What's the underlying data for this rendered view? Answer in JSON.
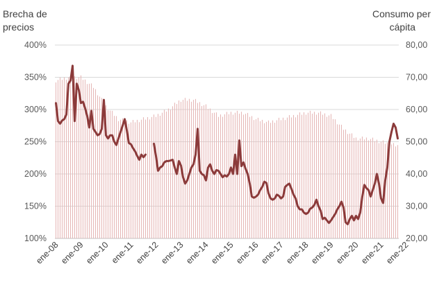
{
  "chart_data": {
    "type": "bar+line",
    "left_axis": {
      "title_lines": [
        "Brecha de",
        "precios"
      ],
      "range": [
        100,
        400
      ],
      "ticks": [
        "400%",
        "350%",
        "300%",
        "250%",
        "200%",
        "150%",
        "100%"
      ]
    },
    "right_axis": {
      "title_lines": [
        "Consumo per",
        "cápita"
      ],
      "range": [
        20,
        80
      ],
      "ticks": [
        "80,00",
        "70,00",
        "60,00",
        "50,00",
        "40,00",
        "30,00",
        "20,00"
      ]
    },
    "x_labels": [
      "ene-08",
      "ene-09",
      "ene-10",
      "ene-11",
      "ene-12",
      "ene-13",
      "ene-14",
      "ene-15",
      "ene-16",
      "ene-17",
      "ene-18",
      "ene-19",
      "ene-20",
      "ene-21",
      "ene-22"
    ],
    "grid": true,
    "series": [
      {
        "type": "bar",
        "axis": "right",
        "color": "#e6b8b7",
        "anchors": [
          [
            0,
            69
          ],
          [
            6,
            70
          ],
          [
            12,
            70
          ],
          [
            18,
            67
          ],
          [
            24,
            61
          ],
          [
            30,
            57
          ],
          [
            36,
            56
          ],
          [
            42,
            57
          ],
          [
            48,
            58
          ],
          [
            54,
            60
          ],
          [
            60,
            63
          ],
          [
            66,
            63
          ],
          [
            72,
            61
          ],
          [
            78,
            58
          ],
          [
            84,
            59
          ],
          [
            90,
            59
          ],
          [
            96,
            57
          ],
          [
            102,
            56
          ],
          [
            108,
            57
          ],
          [
            114,
            58
          ],
          [
            120,
            59
          ],
          [
            126,
            59
          ],
          [
            132,
            58
          ],
          [
            138,
            54
          ],
          [
            144,
            51
          ],
          [
            150,
            51
          ],
          [
            156,
            50
          ],
          [
            162,
            49
          ],
          [
            168,
            48
          ],
          [
            174,
            48
          ]
        ]
      },
      {
        "type": "line",
        "axis": "left",
        "color": "#8b3a3a",
        "segments": [
          [
            [
              0,
              310
            ],
            [
              1,
              282
            ],
            [
              2,
              278
            ],
            [
              3,
              283
            ],
            [
              4,
              285
            ],
            [
              5,
              292
            ],
            [
              6,
              340
            ],
            [
              7,
              345
            ],
            [
              8,
              368
            ],
            [
              9,
              282
            ],
            [
              10,
              340
            ],
            [
              11,
              330
            ],
            [
              12,
              310
            ],
            [
              13,
              312
            ],
            [
              14,
              302
            ],
            [
              15,
              290
            ],
            [
              16,
              272
            ],
            [
              17,
              298
            ],
            [
              18,
              270
            ],
            [
              19,
              265
            ],
            [
              20,
              260
            ],
            [
              21,
              262
            ],
            [
              22,
              270
            ],
            [
              23,
              315
            ],
            [
              24,
              260
            ],
            [
              25,
              255
            ],
            [
              26,
              260
            ],
            [
              27,
              260
            ],
            [
              28,
              250
            ],
            [
              29,
              245
            ],
            [
              30,
              255
            ],
            [
              31,
              265
            ],
            [
              32,
              275
            ],
            [
              33,
              285
            ],
            [
              34,
              268
            ],
            [
              35,
              248
            ],
            [
              36,
              246
            ],
            [
              37,
              240
            ],
            [
              38,
              235
            ],
            [
              39,
              228
            ],
            [
              40,
              222
            ],
            [
              41,
              230
            ],
            [
              42,
              226
            ],
            [
              43,
              230
            ]
          ],
          [
            [
              47,
              247
            ],
            [
              48,
              228
            ],
            [
              49,
              205
            ],
            [
              50,
              210
            ],
            [
              51,
              212
            ],
            [
              52,
              218
            ],
            [
              53,
              220
            ],
            [
              54,
              220
            ],
            [
              55,
              221
            ],
            [
              56,
              222
            ],
            [
              57,
              210
            ],
            [
              58,
              200
            ],
            [
              59,
              220
            ],
            [
              60,
              213
            ],
            [
              61,
              195
            ],
            [
              62,
              185
            ],
            [
              63,
              190
            ],
            [
              64,
              200
            ],
            [
              65,
              210
            ],
            [
              66,
              215
            ],
            [
              67,
              230
            ],
            [
              68,
              270
            ],
            [
              69,
              205
            ],
            [
              70,
              200
            ],
            [
              71,
              198
            ],
            [
              72,
              190
            ],
            [
              73,
              210
            ],
            [
              74,
              215
            ],
            [
              75,
              205
            ],
            [
              76,
              200
            ],
            [
              77,
              206
            ],
            [
              78,
              205
            ],
            [
              79,
              200
            ],
            [
              80,
              195
            ],
            [
              81,
              198
            ],
            [
              82,
              196
            ],
            [
              83,
              200
            ],
            [
              84,
              210
            ],
            [
              85,
              200
            ],
            [
              86,
              230
            ],
            [
              87,
              200
            ],
            [
              88,
              252
            ],
            [
              89,
              212
            ],
            [
              90,
              218
            ],
            [
              91,
              208
            ],
            [
              92,
              200
            ],
            [
              93,
              185
            ],
            [
              94,
              165
            ],
            [
              95,
              163
            ],
            [
              96,
              165
            ],
            [
              97,
              168
            ],
            [
              98,
              175
            ],
            [
              99,
              180
            ],
            [
              100,
              188
            ],
            [
              101,
              186
            ],
            [
              102,
              170
            ],
            [
              103,
              162
            ],
            [
              104,
              160
            ],
            [
              105,
              162
            ],
            [
              106,
              168
            ],
            [
              107,
              166
            ],
            [
              108,
              162
            ],
            [
              109,
              165
            ],
            [
              110,
              180
            ],
            [
              111,
              183
            ],
            [
              112,
              185
            ],
            [
              113,
              177
            ],
            [
              114,
              168
            ],
            [
              115,
              162
            ],
            [
              116,
              150
            ],
            [
              117,
              145
            ],
            [
              118,
              145
            ],
            [
              119,
              140
            ],
            [
              120,
              138
            ],
            [
              121,
              140
            ],
            [
              122,
              146
            ],
            [
              123,
              148
            ],
            [
              124,
              152
            ],
            [
              125,
              160
            ],
            [
              126,
              150
            ],
            [
              127,
              143
            ],
            [
              128,
              130
            ],
            [
              129,
              132
            ],
            [
              130,
              128
            ],
            [
              131,
              124
            ],
            [
              132,
              128
            ],
            [
              133,
              133
            ],
            [
              134,
              138
            ],
            [
              135,
              145
            ],
            [
              136,
              150
            ],
            [
              137,
              157
            ],
            [
              138,
              148
            ],
            [
              139,
              125
            ],
            [
              140,
              122
            ],
            [
              141,
              130
            ],
            [
              142,
              135
            ],
            [
              143,
              128
            ],
            [
              144,
              135
            ],
            [
              145,
              130
            ],
            [
              146,
              140
            ],
            [
              147,
              165
            ],
            [
              148,
              183
            ],
            [
              149,
              178
            ],
            [
              150,
              175
            ],
            [
              151,
              165
            ],
            [
              152,
              175
            ],
            [
              153,
              185
            ],
            [
              154,
              200
            ],
            [
              155,
              185
            ],
            [
              156,
              162
            ],
            [
              157,
              155
            ],
            [
              158,
              190
            ],
            [
              159,
              210
            ],
            [
              160,
              250
            ],
            [
              161,
              265
            ],
            [
              162,
              278
            ],
            [
              163,
              272
            ],
            [
              164,
              255
            ]
          ]
        ]
      }
    ]
  }
}
